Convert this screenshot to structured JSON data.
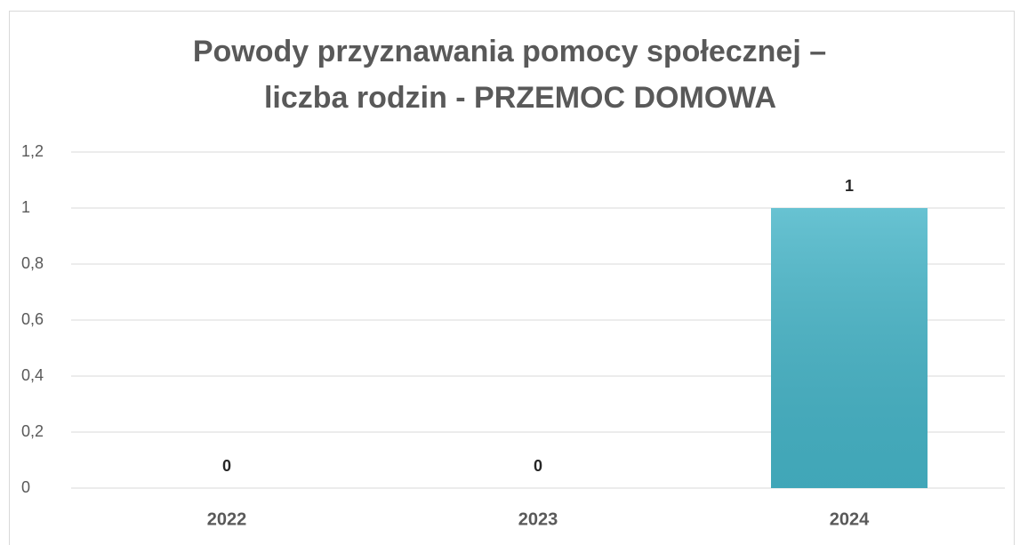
{
  "chart_data": {
    "type": "bar",
    "title": [
      "Powody przyznawania pomocy społecznej –",
      "liczba rodzin - PRZEMOC DOMOWA"
    ],
    "categories": [
      "2022",
      "2023",
      "2024"
    ],
    "values": [
      0,
      0,
      1
    ],
    "color": "#46b5c8",
    "ylim": [
      0,
      1.2
    ],
    "yticks": [
      0,
      {
        "value": 0.2,
        "label": "0,2"
      },
      {
        "value": 0.4,
        "label": "0,4"
      },
      {
        "value": 0.6,
        "label": "0,6"
      },
      {
        "value": 0.8,
        "label": "0,8"
      },
      1,
      {
        "value": 1.2,
        "label": "1,2"
      }
    ],
    "grid": true
  }
}
